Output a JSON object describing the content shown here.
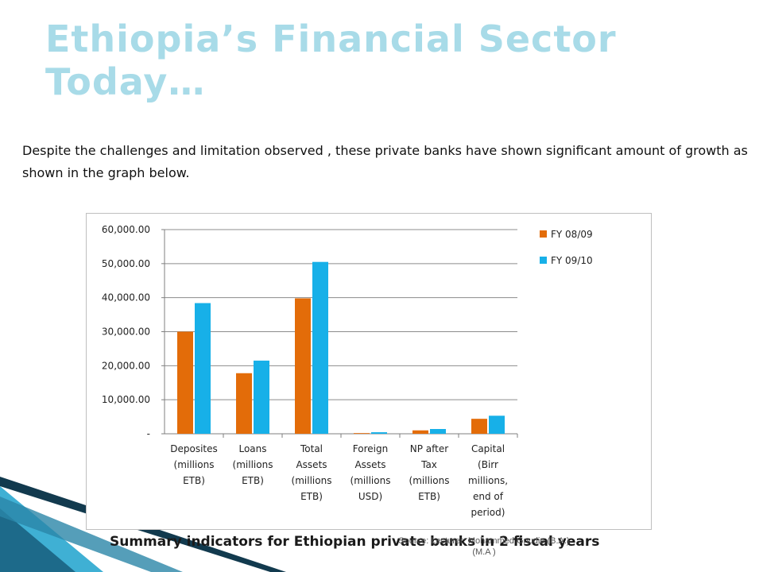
{
  "slide": {
    "title": "Ethiopia’s Financial  Sector Today…",
    "intro": "Despite the challenges  and limitation observed , these private banks have shown significant amount of growth as shown in the graph below.",
    "caption": "Summary indicators for Ethiopian private banks in 2 fiscal years",
    "source": "Source: Lecturer: Mohammed Gnudie (B.A.)(M.A )"
  },
  "colors": {
    "title": "#a8dbe8",
    "series_fy0809": "#e36c09",
    "series_fy0910": "#17b0e8",
    "decoration_dark": "#123a4e",
    "decoration_light": "#3fb0d4"
  },
  "chart_data": {
    "type": "bar",
    "categories": [
      [
        "Deposites",
        "(millions",
        "ETB)"
      ],
      [
        "Loans",
        "(millions",
        "ETB)"
      ],
      [
        "Total",
        "Assets",
        "(millions",
        "ETB)"
      ],
      [
        "Foreign",
        "Assets",
        "(millions",
        "USD)"
      ],
      [
        "NP after",
        "Tax",
        "(millions",
        "ETB)"
      ],
      [
        "Capital",
        "(Birr",
        "millions,",
        "end of",
        "period)"
      ]
    ],
    "series": [
      {
        "name": "FY 08/09",
        "values": [
          30000,
          17800,
          39800,
          200,
          1000,
          4400
        ]
      },
      {
        "name": "FY 09/10",
        "values": [
          38400,
          21500,
          50500,
          450,
          1400,
          5300
        ]
      }
    ],
    "ylim": [
      0,
      60000
    ],
    "yticks": [
      "-",
      "10,000.00",
      "20,000.00",
      "30,000.00",
      "40,000.00",
      "50,000.00",
      "60,000.00"
    ],
    "grid": true,
    "legend": "top-right"
  }
}
